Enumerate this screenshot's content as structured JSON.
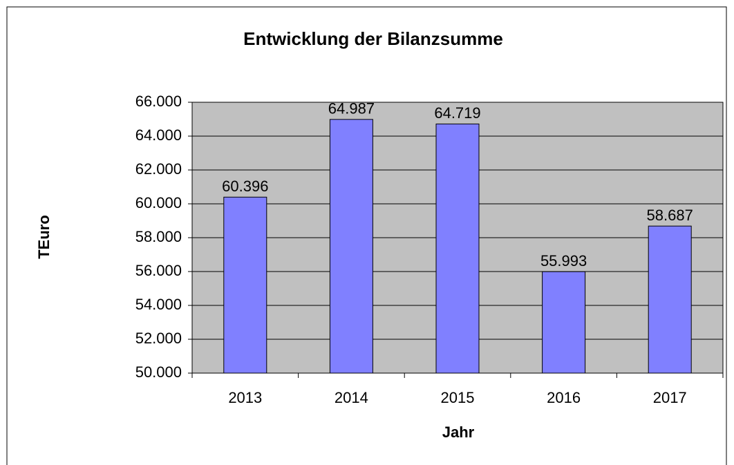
{
  "chart_data": {
    "type": "bar",
    "title": "Entwicklung der Bilanzsumme",
    "x_label": "Jahr",
    "y_label": "TEuro",
    "categories": [
      "2013",
      "2014",
      "2015",
      "2016",
      "2017"
    ],
    "values": [
      60396,
      64987,
      64719,
      55993,
      58687
    ],
    "value_labels": [
      "60.396",
      "64.987",
      "64.719",
      "55.993",
      "58.687"
    ],
    "color": "#8080ff",
    "plot_background": "#c0c0c0",
    "ylim": [
      50000,
      66000
    ],
    "yticks": [
      {
        "value": 50000,
        "label": "50.000"
      },
      {
        "value": 52000,
        "label": "52.000"
      },
      {
        "value": 54000,
        "label": "54.000"
      },
      {
        "value": 56000,
        "label": "56.000"
      },
      {
        "value": 58000,
        "label": "58.000"
      },
      {
        "value": 60000,
        "label": "60.000"
      },
      {
        "value": 62000,
        "label": "62.000"
      },
      {
        "value": 64000,
        "label": "64.000"
      },
      {
        "value": 66000,
        "label": "66.000"
      }
    ],
    "grid": true
  }
}
